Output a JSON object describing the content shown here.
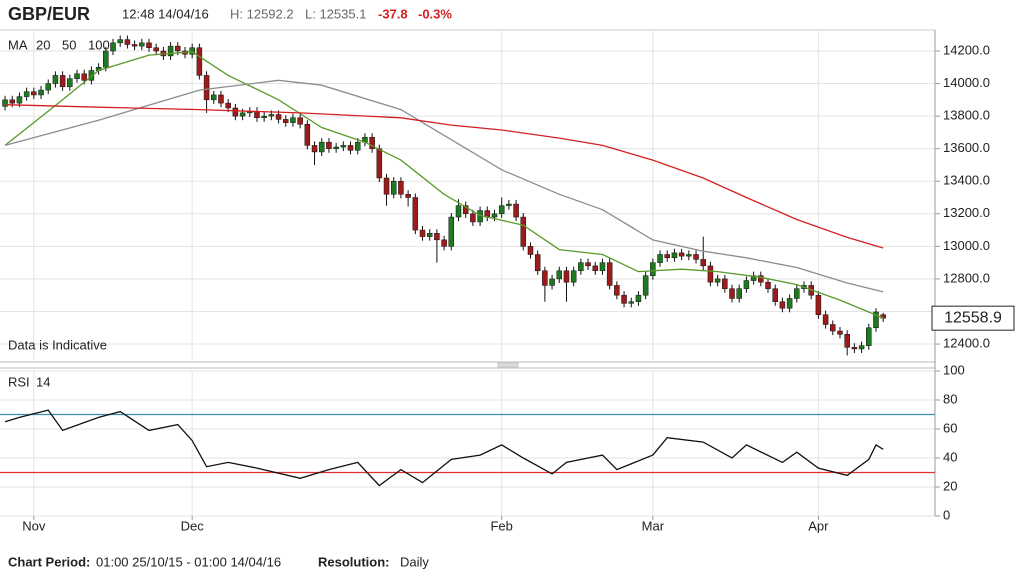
{
  "header": {
    "symbol": "GBP/EUR",
    "time": "12:48 14/04/16",
    "high": "H: 12592.2",
    "low": "L: 12535.1",
    "change": "-37.8",
    "change_pct": "-0.3%"
  },
  "chart_data": [
    {
      "type": "candlestick",
      "legend_title": "MA",
      "annotation": "Data is Indicative",
      "up_color": "#1f7a1f",
      "down_color": "#9e1b1b",
      "wick_color": "#111111",
      "xlim": [
        -0.7,
        129.2
      ],
      "ylim": [
        12302,
        14329
      ],
      "yticks": [
        {
          "value": 12400,
          "label": "12400.0"
        },
        {
          "value": 12600,
          "label": "12600.0"
        },
        {
          "value": 12800,
          "label": "12800.0"
        },
        {
          "value": 13000,
          "label": "13000.0"
        },
        {
          "value": 13200,
          "label": "13200.0"
        },
        {
          "value": 13400,
          "label": "13400.0"
        },
        {
          "value": 13600,
          "label": "13600.0"
        },
        {
          "value": 13800,
          "label": "13800.0"
        },
        {
          "value": 14000,
          "label": "14000.0"
        },
        {
          "value": 14200,
          "label": "14200.0"
        }
      ],
      "grid": true,
      "ohlc": [
        [
          13860,
          13925,
          13835,
          13900
        ],
        [
          13900,
          13925,
          13855,
          13880
        ],
        [
          13880,
          13945,
          13855,
          13920
        ],
        [
          13920,
          13975,
          13895,
          13950
        ],
        [
          13950,
          13975,
          13905,
          13930
        ],
        [
          13930,
          13985,
          13905,
          13960
        ],
        [
          13960,
          14025,
          13935,
          14000
        ],
        [
          14000,
          14075,
          13975,
          14050
        ],
        [
          14050,
          14075,
          13955,
          13980
        ],
        [
          13980,
          14055,
          13955,
          14030
        ],
        [
          14030,
          14085,
          14005,
          14060
        ],
        [
          14060,
          14085,
          13995,
          14020
        ],
        [
          14020,
          14105,
          13995,
          14080
        ],
        [
          14080,
          14125,
          14055,
          14100
        ],
        [
          14100,
          14225,
          14075,
          14200
        ],
        [
          14200,
          14275,
          14175,
          14250
        ],
        [
          14250,
          14295,
          14225,
          14270
        ],
        [
          14270,
          14295,
          14215,
          14240
        ],
        [
          14240,
          14265,
          14205,
          14230
        ],
        [
          14230,
          14275,
          14205,
          14250
        ],
        [
          14250,
          14275,
          14195,
          14220
        ],
        [
          14220,
          14245,
          14175,
          14200
        ],
        [
          14200,
          14225,
          14145,
          14170
        ],
        [
          14170,
          14255,
          14145,
          14230
        ],
        [
          14230,
          14255,
          14175,
          14200
        ],
        [
          14200,
          14225,
          14155,
          14180
        ],
        [
          14180,
          14245,
          14155,
          14220
        ],
        [
          14220,
          14245,
          14025,
          14050
        ],
        [
          14050,
          14075,
          13820,
          13900
        ],
        [
          13900,
          13955,
          13875,
          13930
        ],
        [
          13930,
          13955,
          13855,
          13880
        ],
        [
          13880,
          13905,
          13825,
          13850
        ],
        [
          13850,
          13875,
          13775,
          13800
        ],
        [
          13800,
          13845,
          13775,
          13820
        ],
        [
          13820,
          13855,
          13795,
          13830
        ],
        [
          13830,
          13855,
          13765,
          13790
        ],
        [
          13790,
          13825,
          13765,
          13800
        ],
        [
          13800,
          13835,
          13775,
          13810
        ],
        [
          13810,
          13835,
          13755,
          13780
        ],
        [
          13780,
          13805,
          13735,
          13760
        ],
        [
          13760,
          13815,
          13735,
          13790
        ],
        [
          13790,
          13815,
          13725,
          13750
        ],
        [
          13750,
          13775,
          13595,
          13620
        ],
        [
          13620,
          13645,
          13500,
          13580
        ],
        [
          13580,
          13665,
          13555,
          13640
        ],
        [
          13640,
          13665,
          13575,
          13600
        ],
        [
          13600,
          13635,
          13575,
          13610
        ],
        [
          13610,
          13645,
          13585,
          13620
        ],
        [
          13620,
          13645,
          13565,
          13590
        ],
        [
          13590,
          13665,
          13565,
          13640
        ],
        [
          13640,
          13695,
          13615,
          13670
        ],
        [
          13670,
          13695,
          13575,
          13600
        ],
        [
          13600,
          13625,
          13395,
          13420
        ],
        [
          13420,
          13445,
          13250,
          13320
        ],
        [
          13320,
          13425,
          13295,
          13400
        ],
        [
          13400,
          13425,
          13295,
          13320
        ],
        [
          13320,
          13345,
          13245,
          13300
        ],
        [
          13300,
          13325,
          13075,
          13100
        ],
        [
          13100,
          13125,
          13035,
          13060
        ],
        [
          13060,
          13105,
          13035,
          13080
        ],
        [
          13080,
          13105,
          12900,
          13040
        ],
        [
          13040,
          13065,
          12975,
          13000
        ],
        [
          13000,
          13205,
          12975,
          13180
        ],
        [
          13180,
          13290,
          13155,
          13250
        ],
        [
          13250,
          13275,
          13175,
          13200
        ],
        [
          13200,
          13225,
          13125,
          13150
        ],
        [
          13150,
          13245,
          13125,
          13220
        ],
        [
          13220,
          13245,
          13155,
          13180
        ],
        [
          13180,
          13225,
          13155,
          13200
        ],
        [
          13200,
          13300,
          13175,
          13250
        ],
        [
          13250,
          13285,
          13225,
          13260
        ],
        [
          13260,
          13285,
          13155,
          13180
        ],
        [
          13180,
          13205,
          12975,
          13000
        ],
        [
          13000,
          13025,
          12925,
          12950
        ],
        [
          12950,
          12975,
          12825,
          12850
        ],
        [
          12850,
          12875,
          12660,
          12760
        ],
        [
          12760,
          12825,
          12735,
          12800
        ],
        [
          12800,
          12875,
          12775,
          12850
        ],
        [
          12850,
          12875,
          12660,
          12780
        ],
        [
          12780,
          12875,
          12755,
          12850
        ],
        [
          12850,
          12925,
          12825,
          12900
        ],
        [
          12900,
          12925,
          12855,
          12880
        ],
        [
          12880,
          12905,
          12825,
          12850
        ],
        [
          12850,
          12925,
          12825,
          12900
        ],
        [
          12900,
          12925,
          12735,
          12760
        ],
        [
          12760,
          12785,
          12675,
          12700
        ],
        [
          12700,
          12725,
          12625,
          12650
        ],
        [
          12650,
          12685,
          12625,
          12660
        ],
        [
          12660,
          12725,
          12635,
          12700
        ],
        [
          12700,
          12845,
          12675,
          12820
        ],
        [
          12820,
          12925,
          12795,
          12900
        ],
        [
          12900,
          12975,
          12875,
          12950
        ],
        [
          12950,
          12975,
          12905,
          12930
        ],
        [
          12930,
          12985,
          12905,
          12960
        ],
        [
          12960,
          12985,
          12915,
          12940
        ],
        [
          12940,
          12975,
          12915,
          12950
        ],
        [
          12950,
          12975,
          12895,
          12920
        ],
        [
          12920,
          13060,
          12855,
          12880
        ],
        [
          12880,
          12905,
          12755,
          12780
        ],
        [
          12780,
          12825,
          12755,
          12800
        ],
        [
          12800,
          12825,
          12715,
          12740
        ],
        [
          12740,
          12765,
          12655,
          12680
        ],
        [
          12680,
          12765,
          12655,
          12740
        ],
        [
          12740,
          12815,
          12715,
          12790
        ],
        [
          12790,
          12845,
          12765,
          12820
        ],
        [
          12820,
          12845,
          12755,
          12780
        ],
        [
          12780,
          12805,
          12715,
          12740
        ],
        [
          12740,
          12765,
          12635,
          12660
        ],
        [
          12660,
          12685,
          12595,
          12620
        ],
        [
          12620,
          12705,
          12595,
          12680
        ],
        [
          12680,
          12765,
          12655,
          12740
        ],
        [
          12740,
          12785,
          12715,
          12760
        ],
        [
          12760,
          12785,
          12675,
          12700
        ],
        [
          12700,
          12725,
          12555,
          12580
        ],
        [
          12580,
          12605,
          12495,
          12520
        ],
        [
          12520,
          12545,
          12455,
          12480
        ],
        [
          12480,
          12505,
          12435,
          12460
        ],
        [
          12460,
          12485,
          12330,
          12380
        ],
        [
          12380,
          12405,
          12345,
          12370
        ],
        [
          12370,
          12415,
          12345,
          12390
        ],
        [
          12390,
          12525,
          12365,
          12500
        ],
        [
          12500,
          12620,
          12475,
          12597
        ],
        [
          12580,
          12592.2,
          12535.1,
          12558.9
        ]
      ],
      "series": [
        {
          "name": "20",
          "color": "#5a9a2a",
          "x": [
            0,
            8,
            13,
            20,
            26,
            31,
            38,
            44,
            50,
            55,
            61,
            66,
            72,
            77,
            83,
            88,
            94,
            99,
            105,
            110,
            116,
            122
          ],
          "values": [
            13620,
            13900,
            14080,
            14175,
            14195,
            14050,
            13900,
            13730,
            13640,
            13530,
            13320,
            13190,
            13130,
            12980,
            12950,
            12845,
            12860,
            12845,
            12810,
            12765,
            12670,
            12560
          ]
        },
        {
          "name": "50",
          "color": "#8c8c8c",
          "x": [
            0,
            13,
            27,
            38,
            44,
            55,
            62,
            69,
            77,
            83,
            90,
            97,
            103,
            110,
            117,
            122
          ],
          "values": [
            13620,
            13775,
            13960,
            14020,
            13990,
            13840,
            13655,
            13470,
            13320,
            13225,
            13040,
            12970,
            12930,
            12870,
            12775,
            12720
          ]
        },
        {
          "name": "100",
          "color": "#d42020",
          "x": [
            0,
            13,
            27,
            41,
            55,
            62,
            69,
            77,
            83,
            90,
            97,
            103,
            110,
            117,
            122
          ],
          "values": [
            13870,
            13855,
            13840,
            13820,
            13790,
            13745,
            13715,
            13665,
            13620,
            13530,
            13420,
            13300,
            13165,
            13055,
            12990
          ]
        }
      ]
    },
    {
      "type": "line",
      "title": "RSI",
      "xlim": [
        -0.7,
        129.2
      ],
      "ylim": [
        0,
        100
      ],
      "yticks": [
        0,
        20,
        40,
        60,
        80,
        100
      ],
      "grid": true,
      "xticks": [
        {
          "value": 4,
          "label": "Nov"
        },
        {
          "value": 26,
          "label": "Dec"
        },
        {
          "value": 69,
          "label": "Feb"
        },
        {
          "value": 90,
          "label": "Mar"
        },
        {
          "value": 113,
          "label": "Apr"
        }
      ],
      "levels": [
        {
          "value": 70,
          "color": "#3a8fb0"
        },
        {
          "value": 30,
          "color": "#e03030"
        }
      ],
      "series": [
        {
          "name": "14",
          "color": "#111111",
          "x": [
            0,
            2,
            6,
            8,
            13,
            16,
            20,
            24,
            26,
            28,
            31,
            35,
            41,
            45,
            49,
            52,
            55,
            58,
            62,
            66,
            69,
            72,
            76,
            78,
            83,
            85,
            90,
            92,
            97,
            101,
            103,
            108,
            110,
            113,
            117,
            120,
            121,
            122
          ],
          "values": [
            65,
            68,
            73,
            59,
            68,
            72,
            59,
            63,
            52,
            34,
            37,
            33,
            26,
            32,
            37,
            21,
            32,
            23,
            39,
            42,
            49,
            40,
            29,
            37,
            42,
            32,
            42,
            54,
            51,
            40,
            49,
            37,
            44,
            33,
            28,
            39,
            49,
            46
          ]
        }
      ]
    }
  ],
  "footer": {
    "period_label": "Chart Period:",
    "period": "01:00 25/10/15 - 01:00 14/04/16",
    "resolution_label": "Resolution:",
    "resolution": "Daily"
  }
}
